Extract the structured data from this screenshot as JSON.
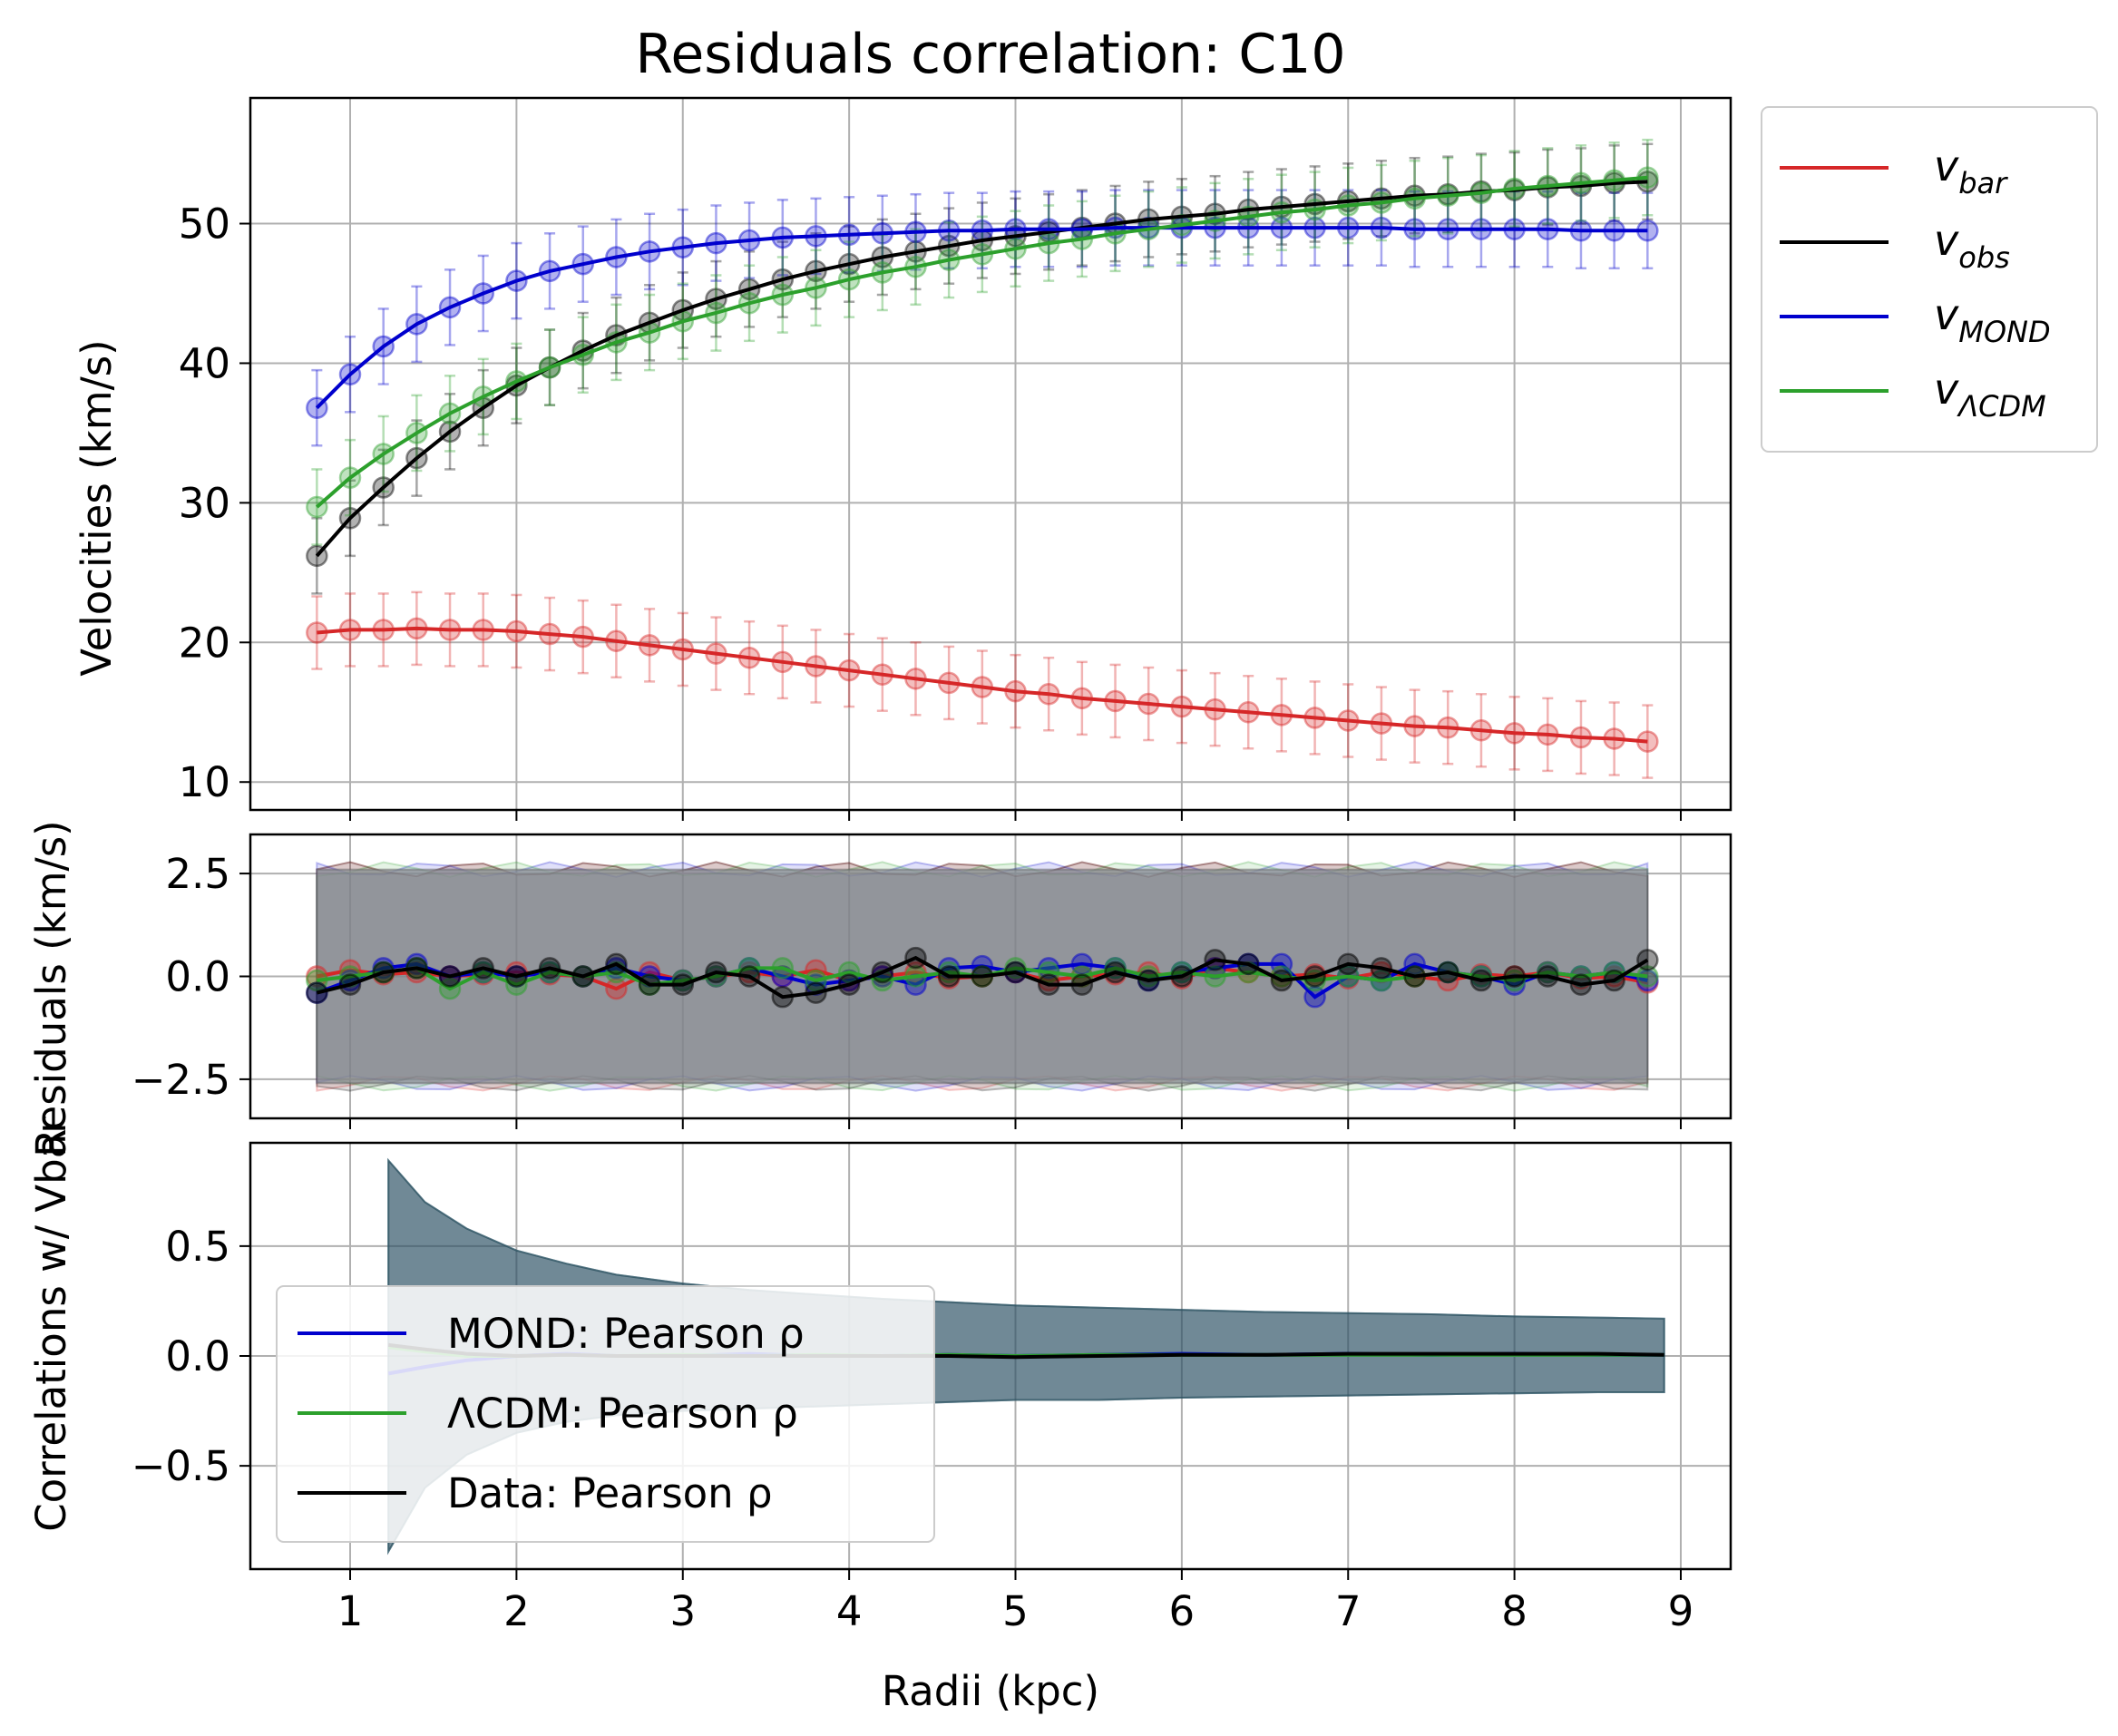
{
  "title": "Residuals correlation: C10",
  "colors": {
    "bar": "#d62728",
    "obs": "#000000",
    "mond": "#0000cd",
    "lcdm": "#2ca02c",
    "band_fill": "#7f8a91"
  },
  "legend_top": [
    {
      "main": "v",
      "sub": "bar",
      "color_key": "bar"
    },
    {
      "main": "v",
      "sub": "obs",
      "color_key": "obs"
    },
    {
      "main": "v",
      "sub": "MOND",
      "color_key": "mond"
    },
    {
      "main": "v",
      "sub": "ΛCDM",
      "color_key": "lcdm"
    }
  ],
  "legend_bottom": [
    {
      "text": "MOND: Pearson ρ",
      "color_key": "mond"
    },
    {
      "text": "ΛCDM: Pearson ρ",
      "color_key": "lcdm"
    },
    {
      "text": "Data: Pearson ρ",
      "color_key": "obs"
    }
  ],
  "chart_data": [
    {
      "type": "line",
      "panel": "velocities",
      "title": "Residuals correlation: C10",
      "ylabel": "Velocities (km/s)",
      "xlabel": "",
      "xlim": [
        0.4,
        9.3
      ],
      "ylim": [
        8,
        59
      ],
      "xticks": [
        1,
        2,
        3,
        4,
        5,
        6,
        7,
        8,
        9
      ],
      "yticks": [
        10,
        20,
        30,
        40,
        50
      ],
      "ytick_labels": [
        "10",
        "20",
        "30",
        "40",
        "50"
      ],
      "grid": true,
      "legend_position": "outside-right",
      "x": [
        0.8,
        1.0,
        1.2,
        1.4,
        1.6,
        1.8,
        2.0,
        2.2,
        2.4,
        2.6,
        2.8,
        3.0,
        3.2,
        3.4,
        3.6,
        3.8,
        4.0,
        4.2,
        4.4,
        4.6,
        4.8,
        5.0,
        5.2,
        5.4,
        5.6,
        5.8,
        6.0,
        6.2,
        6.4,
        6.6,
        6.8,
        7.0,
        7.2,
        7.4,
        7.6,
        7.8,
        8.0,
        8.2,
        8.4,
        8.6,
        8.8
      ],
      "series": [
        {
          "key": "bar",
          "values": [
            20.7,
            20.9,
            20.9,
            21.0,
            20.9,
            20.9,
            20.8,
            20.6,
            20.4,
            20.1,
            19.8,
            19.5,
            19.2,
            18.9,
            18.6,
            18.3,
            18.0,
            17.7,
            17.4,
            17.1,
            16.8,
            16.5,
            16.3,
            16.0,
            15.8,
            15.6,
            15.4,
            15.2,
            15.0,
            14.8,
            14.6,
            14.4,
            14.2,
            14.0,
            13.9,
            13.7,
            13.5,
            13.4,
            13.2,
            13.1,
            12.9
          ],
          "err": 2.6
        },
        {
          "key": "obs",
          "values": [
            26.2,
            28.9,
            31.1,
            33.2,
            35.1,
            36.8,
            38.4,
            39.7,
            40.9,
            42.0,
            42.9,
            43.8,
            44.6,
            45.3,
            46.0,
            46.6,
            47.1,
            47.6,
            48.0,
            48.4,
            48.8,
            49.1,
            49.4,
            49.7,
            50.0,
            50.3,
            50.5,
            50.7,
            51.0,
            51.2,
            51.4,
            51.6,
            51.8,
            52.0,
            52.1,
            52.3,
            52.4,
            52.6,
            52.7,
            52.9,
            53.0
          ],
          "err": 2.7
        },
        {
          "key": "mond",
          "values": [
            36.8,
            39.2,
            41.2,
            42.8,
            44.0,
            45.0,
            45.9,
            46.6,
            47.1,
            47.6,
            48.0,
            48.3,
            48.6,
            48.8,
            49.0,
            49.1,
            49.2,
            49.3,
            49.4,
            49.5,
            49.5,
            49.6,
            49.6,
            49.6,
            49.7,
            49.7,
            49.7,
            49.7,
            49.7,
            49.7,
            49.7,
            49.7,
            49.7,
            49.6,
            49.6,
            49.6,
            49.6,
            49.6,
            49.5,
            49.5,
            49.5
          ],
          "err": 2.7
        },
        {
          "key": "lcdm",
          "values": [
            29.7,
            31.8,
            33.5,
            35.0,
            36.4,
            37.6,
            38.7,
            39.7,
            40.6,
            41.5,
            42.2,
            43.0,
            43.6,
            44.3,
            44.9,
            45.4,
            46.0,
            46.5,
            46.9,
            47.4,
            47.8,
            48.2,
            48.6,
            48.9,
            49.3,
            49.6,
            49.9,
            50.2,
            50.5,
            50.8,
            51.0,
            51.3,
            51.5,
            51.8,
            52.0,
            52.2,
            52.5,
            52.7,
            52.9,
            53.1,
            53.3
          ],
          "err": 2.7
        }
      ]
    },
    {
      "type": "line",
      "panel": "residuals",
      "ylabel": "Residuals (km/s)",
      "xlabel": "",
      "xlim": [
        0.4,
        9.3
      ],
      "ylim": [
        -3.45,
        3.45
      ],
      "yticks": [
        -2.5,
        0.0,
        2.5
      ],
      "ytick_labels": [
        "−2.5",
        "0.0",
        "2.5"
      ],
      "grid": true,
      "band": {
        "lower": -2.6,
        "upper": 2.6
      },
      "x": [
        0.8,
        1.0,
        1.2,
        1.4,
        1.6,
        1.8,
        2.0,
        2.2,
        2.4,
        2.6,
        2.8,
        3.0,
        3.2,
        3.4,
        3.6,
        3.8,
        4.0,
        4.2,
        4.4,
        4.6,
        4.8,
        5.0,
        5.2,
        5.4,
        5.6,
        5.8,
        6.0,
        6.2,
        6.4,
        6.6,
        6.8,
        7.0,
        7.2,
        7.4,
        7.6,
        7.8,
        8.0,
        8.2,
        8.4,
        8.6,
        8.8
      ],
      "series": [
        {
          "key": "bar",
          "values": [
            0.0,
            0.15,
            0.05,
            0.1,
            0.0,
            0.05,
            0.1,
            0.05,
            0.0,
            -0.3,
            0.1,
            -0.1,
            0.0,
            0.1,
            0.0,
            0.15,
            -0.1,
            0.0,
            0.1,
            -0.05,
            0.0,
            0.1,
            -0.1,
            0.0,
            0.05,
            0.1,
            -0.05,
            0.2,
            0.1,
            0.0,
            0.05,
            -0.05,
            0.1,
            0.0,
            -0.1,
            0.05,
            0.0,
            0.1,
            -0.05,
            0.0,
            -0.15
          ]
        },
        {
          "key": "mond",
          "values": [
            -0.4,
            -0.1,
            0.2,
            0.3,
            0.0,
            0.1,
            0.0,
            0.1,
            0.0,
            0.2,
            0.0,
            -0.1,
            0.0,
            0.2,
            0.0,
            -0.2,
            -0.1,
            0.0,
            -0.2,
            0.2,
            0.25,
            0.1,
            0.2,
            0.3,
            0.2,
            -0.1,
            0.1,
            0.2,
            0.3,
            0.3,
            -0.5,
            0.0,
            -0.1,
            0.3,
            0.1,
            0.0,
            -0.2,
            0.1,
            0.0,
            0.1,
            -0.1
          ]
        },
        {
          "key": "lcdm",
          "values": [
            -0.1,
            0.0,
            0.1,
            0.2,
            -0.3,
            0.1,
            -0.2,
            0.1,
            0.0,
            0.1,
            -0.2,
            -0.1,
            0.0,
            0.2,
            0.2,
            -0.1,
            0.1,
            -0.1,
            0.0,
            0.1,
            0.0,
            0.2,
            0.1,
            0.0,
            0.2,
            0.0,
            0.1,
            0.0,
            0.1,
            0.0,
            -0.1,
            0.0,
            -0.1,
            0.0,
            0.1,
            0.0,
            -0.1,
            0.1,
            0.0,
            0.1,
            0.0
          ]
        },
        {
          "key": "obs",
          "values": [
            -0.4,
            -0.2,
            0.1,
            0.2,
            0.0,
            0.2,
            0.0,
            0.2,
            0.0,
            0.3,
            -0.2,
            -0.2,
            0.1,
            0.0,
            -0.5,
            -0.4,
            -0.2,
            0.1,
            0.45,
            0.0,
            0.0,
            0.1,
            -0.2,
            -0.2,
            0.1,
            -0.1,
            0.0,
            0.4,
            0.3,
            -0.1,
            0.0,
            0.3,
            0.2,
            0.0,
            0.1,
            -0.1,
            0.0,
            0.0,
            -0.2,
            -0.1,
            0.4
          ]
        }
      ]
    },
    {
      "type": "line",
      "panel": "correlations",
      "ylabel": "Correlations w/ Vbar",
      "xlabel": "Radii (kpc)",
      "xlim": [
        0.4,
        9.3
      ],
      "ylim": [
        -0.97,
        0.97
      ],
      "xticks": [
        1,
        2,
        3,
        4,
        5,
        6,
        7,
        8,
        9
      ],
      "xtick_labels": [
        "1",
        "2",
        "3",
        "4",
        "5",
        "6",
        "7",
        "8",
        "9"
      ],
      "yticks": [
        -0.5,
        0.0,
        0.5
      ],
      "ytick_labels": [
        "−0.5",
        "0.0",
        "0.5"
      ],
      "grid": true,
      "legend_position": "lower-left",
      "x": [
        1.23,
        1.45,
        1.7,
        2.0,
        2.3,
        2.6,
        3.0,
        3.4,
        3.8,
        4.2,
        4.6,
        5.0,
        5.5,
        6.0,
        6.5,
        7.0,
        7.5,
        8.0,
        8.5,
        8.9
      ],
      "band_upper": [
        0.89,
        0.7,
        0.58,
        0.48,
        0.42,
        0.37,
        0.33,
        0.3,
        0.28,
        0.26,
        0.245,
        0.23,
        0.22,
        0.21,
        0.2,
        0.195,
        0.19,
        0.18,
        0.175,
        0.17
      ],
      "band_lower": [
        -0.89,
        -0.6,
        -0.45,
        -0.35,
        -0.3,
        -0.27,
        -0.25,
        -0.24,
        -0.23,
        -0.22,
        -0.21,
        -0.2,
        -0.2,
        -0.19,
        -0.185,
        -0.18,
        -0.175,
        -0.17,
        -0.165,
        -0.165
      ],
      "series": [
        {
          "key": "mond",
          "values": [
            -0.08,
            -0.05,
            -0.02,
            0.0,
            0.01,
            0.0,
            0.0,
            0.01,
            0.0,
            0.0,
            0.005,
            0.0,
            0.005,
            0.01,
            0.005,
            0.01,
            0.005,
            0.01,
            0.005,
            0.005
          ]
        },
        {
          "key": "lcdm",
          "values": [
            0.04,
            0.02,
            0.0,
            0.0,
            0.005,
            0.0,
            0.005,
            0.0,
            0.005,
            0.0,
            0.005,
            0.0,
            0.005,
            0.005,
            0.005,
            0.005,
            0.005,
            0.005,
            0.005,
            0.005
          ]
        },
        {
          "key": "obs",
          "values": [
            0.05,
            0.03,
            0.01,
            0.0,
            0.005,
            0.0,
            0.0,
            0.0,
            0.0,
            0.0,
            0.0,
            -0.005,
            0.0,
            0.005,
            0.005,
            0.01,
            0.01,
            0.01,
            0.01,
            0.005
          ]
        }
      ]
    }
  ]
}
